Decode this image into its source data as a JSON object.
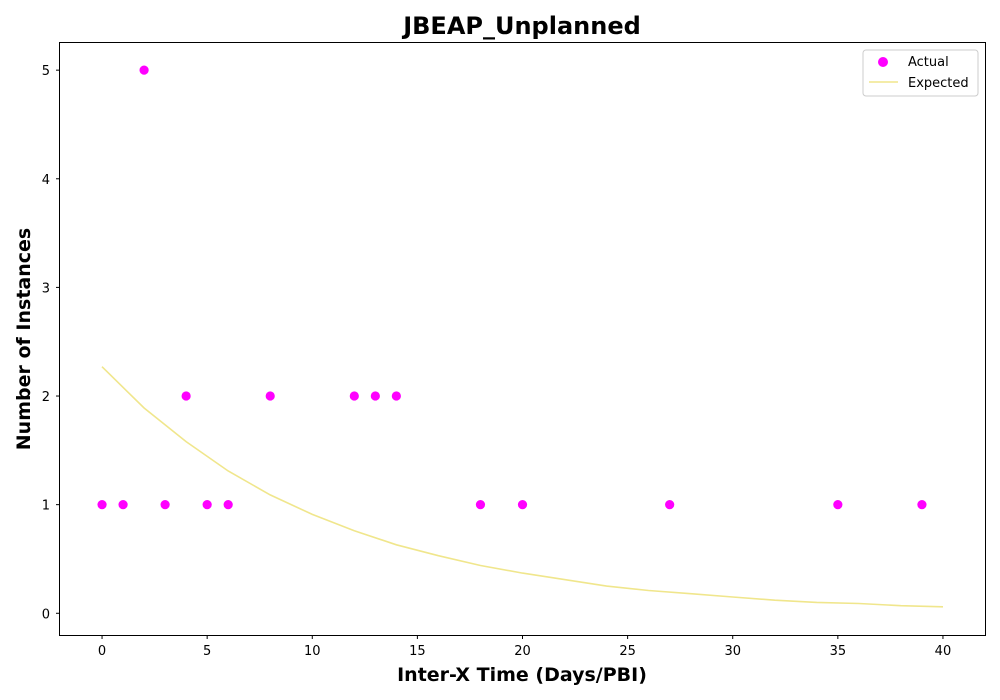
{
  "chart_data": {
    "type": "scatter",
    "title": "JBEAP_Unplanned",
    "xlabel": "Inter-X Time (Days/PBI)",
    "ylabel": "Number of Instances",
    "xlim": [
      -2,
      42
    ],
    "ylim": [
      -0.2,
      5.25
    ],
    "xticks": [
      0,
      5,
      10,
      15,
      20,
      25,
      30,
      35,
      40
    ],
    "yticks": [
      0,
      1,
      2,
      3,
      4,
      5
    ],
    "grid": false,
    "legend_position": "top-right",
    "series": [
      {
        "name": "Actual",
        "kind": "scatter",
        "color": "#ff00ff",
        "points": [
          {
            "x": 0,
            "y": 1
          },
          {
            "x": 1,
            "y": 1
          },
          {
            "x": 2,
            "y": 5
          },
          {
            "x": 3,
            "y": 1
          },
          {
            "x": 4,
            "y": 2
          },
          {
            "x": 5,
            "y": 1
          },
          {
            "x": 6,
            "y": 1
          },
          {
            "x": 8,
            "y": 2
          },
          {
            "x": 12,
            "y": 2
          },
          {
            "x": 13,
            "y": 2
          },
          {
            "x": 14,
            "y": 2
          },
          {
            "x": 18,
            "y": 1
          },
          {
            "x": 20,
            "y": 1
          },
          {
            "x": 27,
            "y": 1
          },
          {
            "x": 35,
            "y": 1
          },
          {
            "x": 39,
            "y": 1
          }
        ]
      },
      {
        "name": "Expected",
        "kind": "line",
        "color": "#f0e68c",
        "points": [
          {
            "x": 0,
            "y": 2.27
          },
          {
            "x": 2,
            "y": 1.89
          },
          {
            "x": 4,
            "y": 1.58
          },
          {
            "x": 6,
            "y": 1.31
          },
          {
            "x": 8,
            "y": 1.09
          },
          {
            "x": 10,
            "y": 0.91
          },
          {
            "x": 12,
            "y": 0.76
          },
          {
            "x": 14,
            "y": 0.63
          },
          {
            "x": 16,
            "y": 0.53
          },
          {
            "x": 18,
            "y": 0.44
          },
          {
            "x": 20,
            "y": 0.37
          },
          {
            "x": 22,
            "y": 0.31
          },
          {
            "x": 24,
            "y": 0.25
          },
          {
            "x": 26,
            "y": 0.21
          },
          {
            "x": 28,
            "y": 0.18
          },
          {
            "x": 30,
            "y": 0.15
          },
          {
            "x": 32,
            "y": 0.12
          },
          {
            "x": 34,
            "y": 0.1
          },
          {
            "x": 36,
            "y": 0.09
          },
          {
            "x": 38,
            "y": 0.07
          },
          {
            "x": 40,
            "y": 0.06
          }
        ]
      }
    ]
  }
}
